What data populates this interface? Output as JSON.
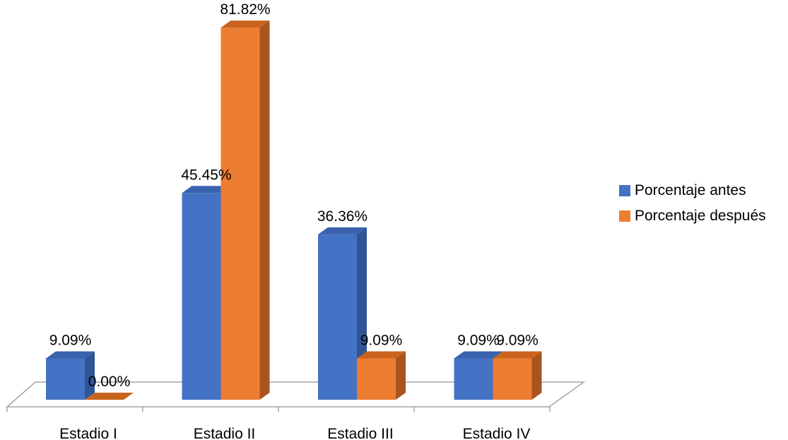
{
  "chart_data": {
    "type": "bar",
    "title": "",
    "xlabel": "",
    "ylabel": "",
    "ylim": [
      0,
      100
    ],
    "categories": [
      "Estadio I",
      "Estadio II",
      "Estadio III",
      "Estadio IV"
    ],
    "series": [
      {
        "name": "Porcentaje antes",
        "values": [
          9.09,
          45.45,
          36.36,
          9.09
        ],
        "labels": [
          "9.09%",
          "45.45%",
          "36.36%",
          "9.09%"
        ],
        "color": "#4472C4",
        "side_color": "#2F5597",
        "top_color": "#3A63AE"
      },
      {
        "name": "Porcentaje después",
        "values": [
          0.0,
          81.82,
          9.09,
          9.09
        ],
        "labels": [
          "0.00%",
          "81.82%",
          "9.09%",
          "9.09%"
        ],
        "color": "#ED7D31",
        "side_color": "#A9541E",
        "top_color": "#C9631E"
      }
    ],
    "legend_position": "right",
    "grid": false,
    "style": "3d-clustered-column"
  }
}
